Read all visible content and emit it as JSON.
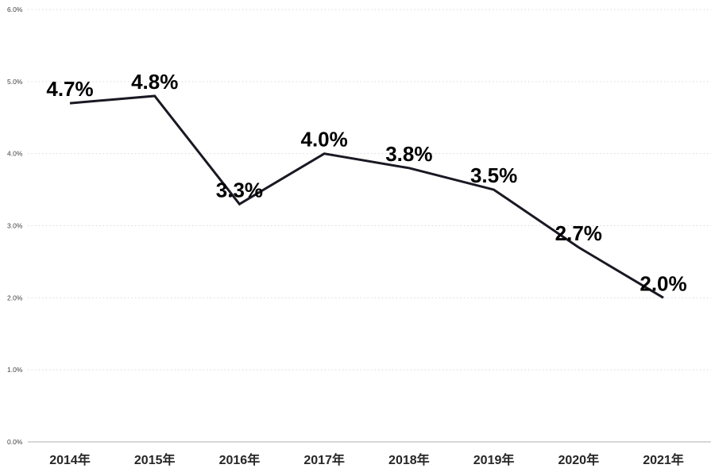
{
  "chart_data": {
    "type": "line",
    "title": "",
    "xlabel": "",
    "ylabel": "",
    "categories": [
      "2014年",
      "2015年",
      "2016年",
      "2017年",
      "2018年",
      "2019年",
      "2020年",
      "2021年"
    ],
    "series": [
      {
        "name": "annual-rate",
        "values": [
          4.7,
          4.8,
          3.3,
          4.0,
          3.8,
          3.5,
          2.7,
          2.0
        ],
        "point_labels": [
          "4.7%",
          "4.8%",
          "3.3%",
          "4.0%",
          "3.8%",
          "3.5%",
          "2.7%",
          "2.0%"
        ]
      }
    ],
    "ylim": [
      0,
      6
    ],
    "ytick_step": 1,
    "ytick_labels": [
      "0.0%",
      "1.0%",
      "2.0%",
      "3.0%",
      "4.0%",
      "5.0%",
      "6.0%"
    ],
    "grid": "horizontal-dotted",
    "legend": "none",
    "colors": {
      "line": "#191923",
      "data_label": "#000000",
      "y_tick_label": "#404040",
      "x_tick_label": "#262626",
      "gridline": "#d9d9d9",
      "baseline": "#bfbfbf",
      "background": "#ffffff"
    }
  }
}
